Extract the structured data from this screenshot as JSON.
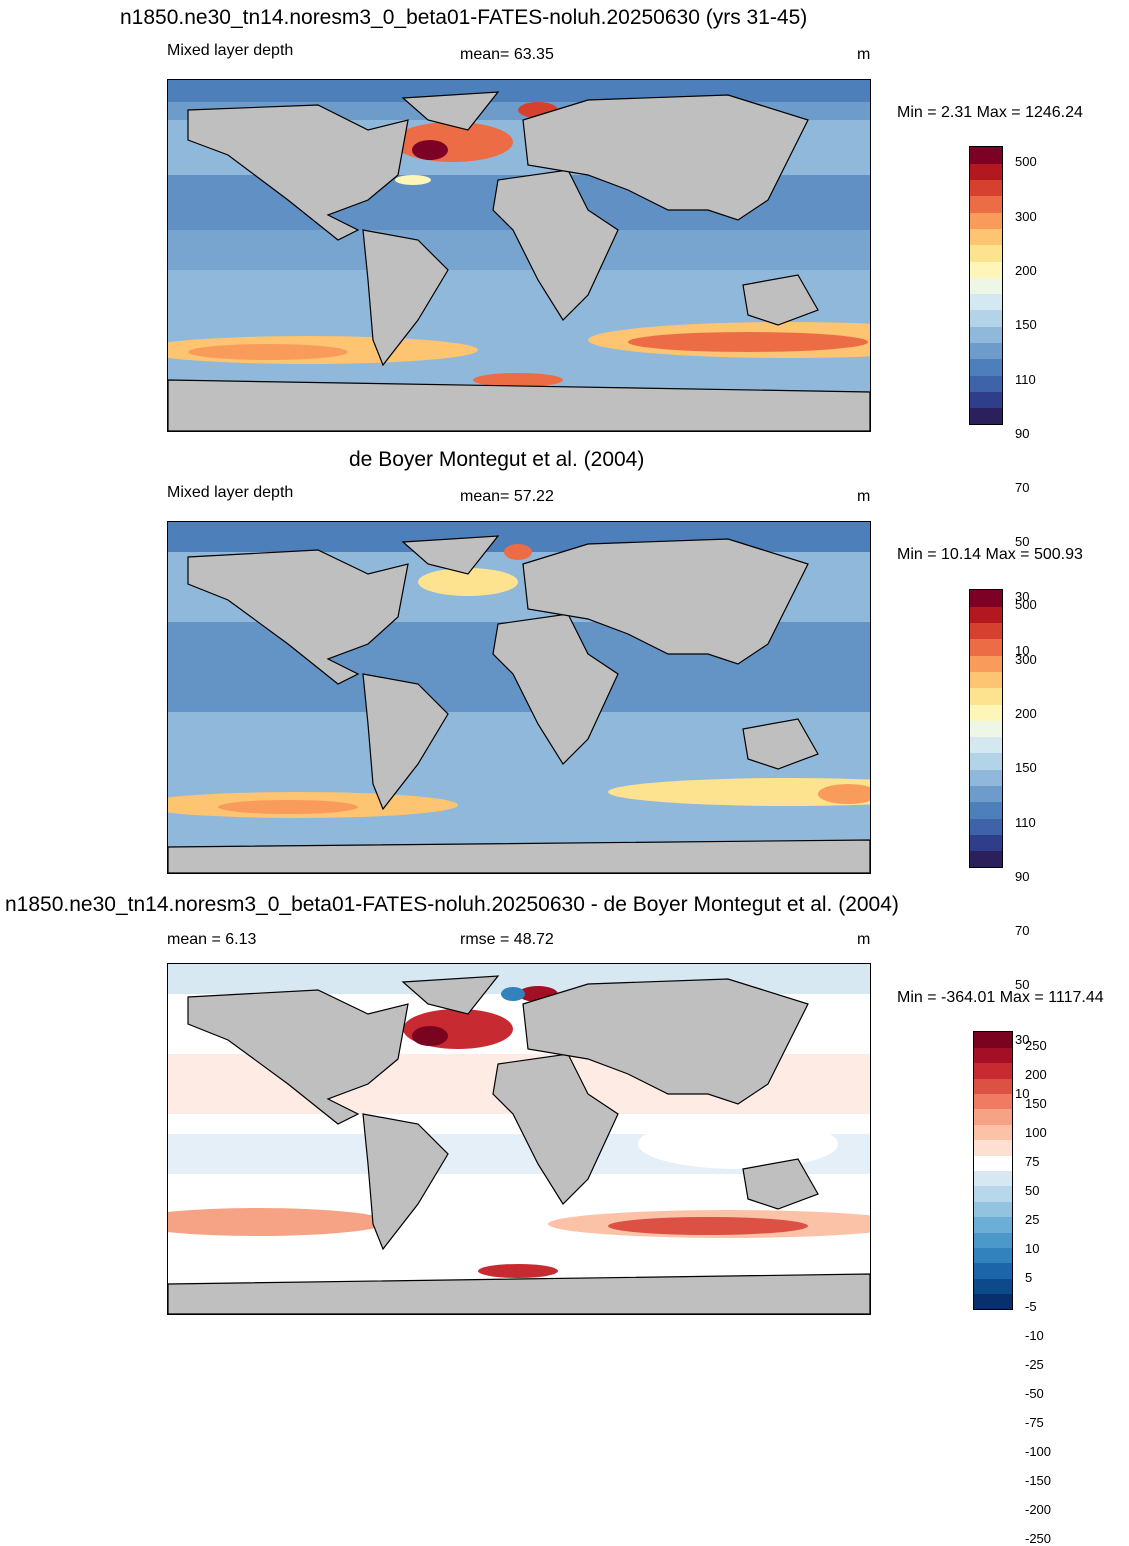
{
  "panels": [
    {
      "title": "n1850.ne30_tn14.noresm3_0_beta01-FATES-noluh.20250630 (yrs 31-45)",
      "left_label": "Mixed layer depth",
      "center_label": "mean=  63.35",
      "units": "m",
      "minmax": "Min =   2.31 Max = 1246.24",
      "colorbar": {
        "colors": [
          "#2b1f5c",
          "#2f3e8a",
          "#3f63a8",
          "#4d7fbb",
          "#6d9ccb",
          "#8fb8db",
          "#b2d3e8",
          "#d4e8f1",
          "#eef6e6",
          "#fdf6b8",
          "#fde38f",
          "#fdc471",
          "#f99c5b",
          "#ec6d45",
          "#d6402f",
          "#b3181f",
          "#7d0025"
        ],
        "labels": [
          "500",
          "300",
          "200",
          "150",
          "110",
          "90",
          "70",
          "50",
          "30",
          "10"
        ]
      }
    },
    {
      "title": "de Boyer Montegut et al. (2004)",
      "left_label": "Mixed layer depth",
      "center_label": "mean=  57.22",
      "units": "m",
      "minmax": "Min =  10.14 Max = 500.93",
      "colorbar": {
        "colors": [
          "#2b1f5c",
          "#2f3e8a",
          "#3f63a8",
          "#4d7fbb",
          "#6d9ccb",
          "#8fb8db",
          "#b2d3e8",
          "#d4e8f1",
          "#eef6e6",
          "#fdf6b8",
          "#fde38f",
          "#fdc471",
          "#f99c5b",
          "#ec6d45",
          "#d6402f",
          "#b3181f",
          "#7d0025"
        ],
        "labels": [
          "500",
          "300",
          "200",
          "150",
          "110",
          "90",
          "70",
          "50",
          "30",
          "10"
        ]
      }
    },
    {
      "title": "n1850.ne30_tn14.noresm3_0_beta01-FATES-noluh.20250630 - de Boyer Montegut et al. (2004)",
      "left_label": "mean =   6.13",
      "center_label": "rmse =  48.72",
      "units": "m",
      "minmax": "Min = -364.01 Max = 1117.44",
      "colorbar": {
        "colors": [
          "#08306b",
          "#0c4a8c",
          "#1c65a8",
          "#3182bd",
          "#4d98cb",
          "#6baed6",
          "#93c3df",
          "#b9d7ea",
          "#d8e8f3",
          "#ffffff",
          "#fde0d2",
          "#fbc2a8",
          "#f6a284",
          "#ee7b62",
          "#dd5145",
          "#c72a31",
          "#a50f25",
          "#7a0420"
        ],
        "labels": [
          "250",
          "200",
          "150",
          "100",
          "75",
          "50",
          "25",
          "10",
          "5",
          "-5",
          "-10",
          "-25",
          "-50",
          "-75",
          "-100",
          "-150",
          "-200",
          "-250"
        ]
      }
    }
  ]
}
